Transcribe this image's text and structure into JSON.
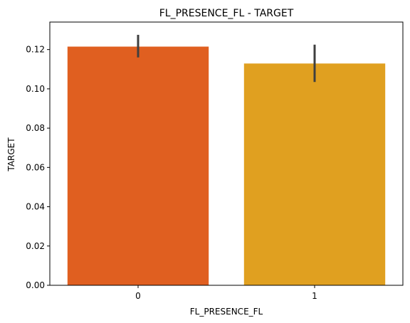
{
  "chart_data": {
    "type": "bar",
    "title": "FL_PRESENCE_FL - TARGET",
    "xlabel": "FL_PRESENCE_FL",
    "ylabel": "TARGET",
    "categories": [
      "0",
      "1"
    ],
    "values": [
      0.1215,
      0.1129
    ],
    "error_bars": [
      [
        0.116,
        0.1275
      ],
      [
        0.1035,
        0.1225
      ]
    ],
    "colors": [
      "#e05f20",
      "#e0a020"
    ],
    "error_bar_color": "#3f3f3f",
    "ylim": [
      0,
      0.134
    ],
    "yticks": [
      0.0,
      0.02,
      0.04,
      0.06,
      0.08,
      0.1,
      0.12
    ],
    "ytick_labels": [
      "0.00",
      "0.02",
      "0.04",
      "0.06",
      "0.08",
      "0.10",
      "0.12"
    ],
    "grid": false,
    "legend": "none"
  }
}
